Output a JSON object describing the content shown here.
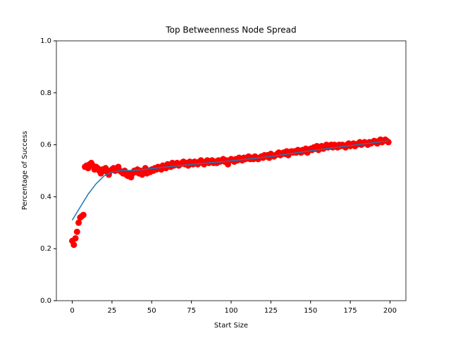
{
  "chart_data": {
    "type": "scatter",
    "title": "Top Betweenness Node Spread",
    "x_label": "Start Size",
    "y_label": "Percentage of Success",
    "xlim": [
      -10,
      210
    ],
    "ylim": [
      0,
      1
    ],
    "xticks": [
      0,
      25,
      50,
      75,
      100,
      125,
      150,
      175,
      200
    ],
    "yticks": [
      {
        "value": 0,
        "label": "0.0"
      },
      {
        "value": 0.2,
        "label": "0.2"
      },
      {
        "value": 0.4,
        "label": "0.4"
      },
      {
        "value": 0.6,
        "label": "0.6"
      },
      {
        "value": 0.8,
        "label": "0.8"
      },
      {
        "value": 1,
        "label": "1.0"
      }
    ],
    "series": [
      {
        "type": "scatter",
        "color": "#ff0000",
        "x": [
          0,
          1,
          2,
          3,
          4,
          5,
          6,
          7,
          8,
          9,
          10,
          11,
          12,
          13,
          14,
          15,
          16,
          17,
          18,
          19,
          20,
          21,
          22,
          23,
          24,
          25,
          26,
          27,
          28,
          29,
          30,
          31,
          32,
          33,
          34,
          35,
          36,
          37,
          38,
          39,
          40,
          41,
          42,
          43,
          44,
          45,
          46,
          47,
          48,
          49,
          50,
          51,
          52,
          53,
          54,
          55,
          56,
          57,
          58,
          59,
          60,
          61,
          62,
          63,
          64,
          65,
          66,
          67,
          68,
          69,
          70,
          71,
          72,
          73,
          74,
          75,
          76,
          77,
          78,
          79,
          80,
          81,
          82,
          83,
          84,
          85,
          86,
          87,
          88,
          89,
          90,
          91,
          92,
          93,
          94,
          95,
          96,
          97,
          98,
          99,
          100,
          101,
          102,
          103,
          104,
          105,
          106,
          107,
          108,
          109,
          110,
          111,
          112,
          113,
          114,
          115,
          116,
          117,
          118,
          119,
          120,
          121,
          122,
          123,
          124,
          125,
          126,
          127,
          128,
          129,
          130,
          131,
          132,
          133,
          134,
          135,
          136,
          137,
          138,
          139,
          140,
          141,
          142,
          143,
          144,
          145,
          146,
          147,
          148,
          149,
          150,
          151,
          152,
          153,
          154,
          155,
          156,
          157,
          158,
          159,
          160,
          161,
          162,
          163,
          164,
          165,
          166,
          167,
          168,
          169,
          170,
          171,
          172,
          173,
          174,
          175,
          176,
          177,
          178,
          179,
          180,
          181,
          182,
          183,
          184,
          185,
          186,
          187,
          188,
          189,
          190,
          191,
          192,
          193,
          194,
          195,
          196,
          197,
          198,
          199
        ],
        "values": [
          0.23,
          0.215,
          0.24,
          0.265,
          0.3,
          0.32,
          0.325,
          0.33,
          0.515,
          0.52,
          0.51,
          0.525,
          0.53,
          0.52,
          0.505,
          0.515,
          0.51,
          0.5,
          0.49,
          0.505,
          0.5,
          0.51,
          0.495,
          0.485,
          0.5,
          0.505,
          0.51,
          0.5,
          0.505,
          0.515,
          0.5,
          0.495,
          0.49,
          0.5,
          0.485,
          0.48,
          0.49,
          0.475,
          0.49,
          0.5,
          0.495,
          0.505,
          0.49,
          0.5,
          0.485,
          0.495,
          0.51,
          0.49,
          0.5,
          0.495,
          0.505,
          0.5,
          0.51,
          0.505,
          0.515,
          0.51,
          0.505,
          0.52,
          0.515,
          0.51,
          0.525,
          0.52,
          0.515,
          0.53,
          0.52,
          0.525,
          0.53,
          0.52,
          0.525,
          0.53,
          0.535,
          0.525,
          0.53,
          0.52,
          0.535,
          0.53,
          0.525,
          0.535,
          0.53,
          0.525,
          0.535,
          0.54,
          0.53,
          0.525,
          0.535,
          0.54,
          0.53,
          0.535,
          0.54,
          0.53,
          0.535,
          0.53,
          0.54,
          0.535,
          0.54,
          0.545,
          0.535,
          0.54,
          0.525,
          0.54,
          0.545,
          0.54,
          0.535,
          0.545,
          0.54,
          0.55,
          0.545,
          0.54,
          0.55,
          0.545,
          0.55,
          0.555,
          0.545,
          0.55,
          0.545,
          0.555,
          0.55,
          0.545,
          0.55,
          0.555,
          0.55,
          0.56,
          0.555,
          0.56,
          0.55,
          0.565,
          0.56,
          0.555,
          0.56,
          0.565,
          0.57,
          0.56,
          0.565,
          0.57,
          0.565,
          0.575,
          0.56,
          0.57,
          0.575,
          0.57,
          0.575,
          0.57,
          0.58,
          0.575,
          0.57,
          0.58,
          0.575,
          0.585,
          0.57,
          0.58,
          0.585,
          0.58,
          0.59,
          0.585,
          0.595,
          0.58,
          0.59,
          0.595,
          0.585,
          0.59,
          0.6,
          0.59,
          0.595,
          0.6,
          0.59,
          0.6,
          0.595,
          0.59,
          0.6,
          0.595,
          0.6,
          0.595,
          0.59,
          0.6,
          0.605,
          0.595,
          0.6,
          0.605,
          0.595,
          0.6,
          0.605,
          0.61,
          0.6,
          0.605,
          0.61,
          0.605,
          0.6,
          0.61,
          0.605,
          0.61,
          0.615,
          0.61,
          0.605,
          0.615,
          0.62,
          0.61,
          0.615,
          0.62,
          0.615,
          0.61
        ]
      },
      {
        "type": "line",
        "color": "#1f77b4",
        "x": [
          0,
          5,
          10,
          15,
          20,
          25,
          30,
          40,
          50,
          60,
          80,
          100,
          125,
          150,
          175,
          199
        ],
        "values": [
          0.31,
          0.36,
          0.41,
          0.45,
          0.48,
          0.495,
          0.5,
          0.502,
          0.508,
          0.515,
          0.527,
          0.538,
          0.555,
          0.577,
          0.597,
          0.615
        ]
      }
    ]
  }
}
